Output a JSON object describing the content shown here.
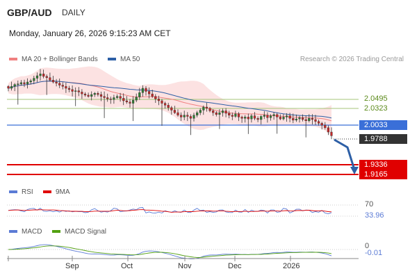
{
  "header": {
    "pair": "GBP/AUD",
    "timeframe": "DAILY",
    "datetime": "Monday, January 26, 2026 9:15:23 AM CET"
  },
  "copyright": "Research © 2026 Trading Central",
  "legends": {
    "ma20_bb": "MA 20 + Bollinger Bands",
    "ma50": "MA 50",
    "rsi": "RSI",
    "rsi_ma": "9MA",
    "macd": "MACD",
    "macd_signal": "MACD Signal"
  },
  "colors": {
    "up": "#2e7d32",
    "down": "#c62828",
    "bb_fill": "#fbd3d3",
    "ma20": "#f08080",
    "ma50": "#2d5fa6",
    "support": "#e00000",
    "pivot": "#3a6fd8",
    "resistance": "#a4c47a",
    "rsi": "#5b7bd5",
    "rsi_ma": "#e00000",
    "macd": "#5b7bd5",
    "macd_signal": "#52a011"
  },
  "levels": {
    "resistance": [
      "2.0495",
      "2.0323"
    ],
    "pivot": "2.0033",
    "last": "1.9788",
    "support": [
      "1.9336",
      "1.9165"
    ]
  },
  "rsi": {
    "upper": "70",
    "lower": "30",
    "value": "33.96"
  },
  "macd": {
    "zero": "0",
    "value": "-0.01"
  },
  "x_axis": [
    "Sep",
    "Oct",
    "Nov",
    "Dec",
    "2026"
  ],
  "chart_data": {
    "type": "candlestick",
    "title": "GBP/AUD",
    "xlabel": "",
    "ylabel": "",
    "ylim": [
      1.905,
      2.085
    ],
    "x_ticks": [
      "Sep",
      "Oct",
      "Nov",
      "Dec",
      "2026"
    ],
    "close_start": 2.055,
    "close_end": 1.9788,
    "close": [
      2.055,
      2.058,
      2.061,
      2.062,
      2.064,
      2.062,
      2.065,
      2.067,
      2.071,
      2.075,
      2.078,
      2.074,
      2.072,
      2.068,
      2.065,
      2.063,
      2.06,
      2.058,
      2.055,
      2.053,
      2.05,
      2.051,
      2.049,
      2.046,
      2.044,
      2.042,
      2.045,
      2.047,
      2.045,
      2.042,
      2.04,
      2.038,
      2.037,
      2.04,
      2.042,
      2.039,
      2.035,
      2.033,
      2.031,
      2.036,
      2.041,
      2.048,
      2.055,
      2.05,
      2.046,
      2.042,
      2.038,
      2.035,
      2.031,
      2.028,
      2.024,
      2.02,
      2.016,
      2.012,
      2.009,
      2.012,
      2.01,
      2.007,
      2.012,
      2.016,
      2.02,
      2.025,
      2.023,
      2.019,
      2.016,
      2.013,
      2.016,
      2.019,
      2.015,
      2.012,
      2.01,
      2.014,
      2.009,
      2.007,
      2.009,
      2.006,
      2.011,
      2.007,
      2.005,
      2.01,
      2.012,
      2.008,
      2.011,
      2.013,
      2.009,
      2.006,
      2.009,
      2.011,
      2.007,
      2.004,
      2.006,
      2.008,
      2.005,
      2.003,
      2.007,
      2.005,
      2.002,
      1.999,
      1.996,
      1.992,
      1.985,
      1.979
    ]
  }
}
